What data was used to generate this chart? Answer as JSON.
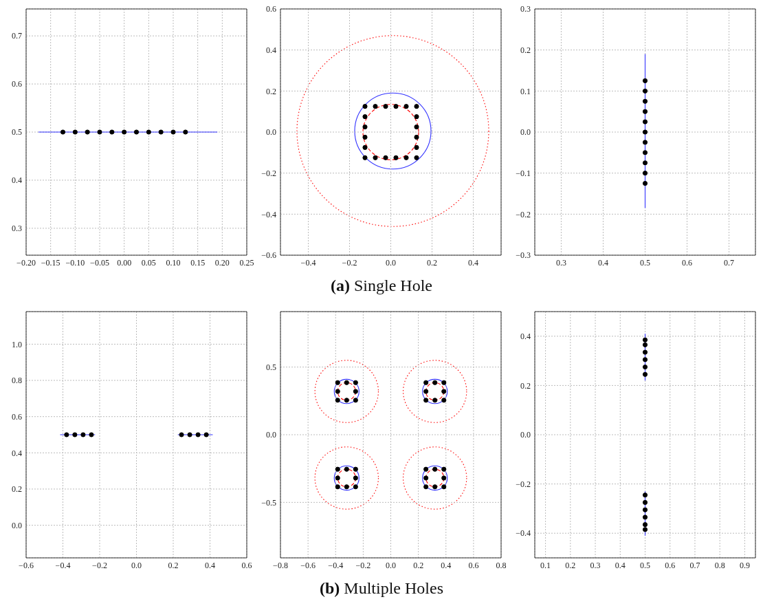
{
  "chart_data": [
    {
      "type": "scatter",
      "grid": true,
      "xlim": [
        -0.2,
        0.25
      ],
      "ylim": [
        0.244,
        0.756
      ],
      "xticks": [
        {
          "value": -0.2,
          "label": "−0.20"
        },
        {
          "value": -0.15,
          "label": "−0.15"
        },
        {
          "value": -0.1,
          "label": "−0.10"
        },
        {
          "value": -0.05,
          "label": "−0.05"
        },
        {
          "value": 0,
          "label": "0.00"
        },
        0.05,
        {
          "value": 0.1,
          "label": "0.10"
        },
        0.15,
        {
          "value": 0.2,
          "label": "0.20"
        },
        0.25
      ],
      "yticks": [
        0.3,
        0.4,
        0.5,
        0.6,
        0.7
      ],
      "series": [
        {
          "type": "line",
          "line_style": "solid",
          "color": "#3333ff",
          "x": [
            -0.175,
            0.19
          ],
          "values": [
            0.5,
            0.5
          ]
        },
        {
          "marker": "circle",
          "color": "#000000",
          "x": [
            -0.125,
            -0.1,
            -0.075,
            -0.05,
            -0.025,
            0,
            0.025,
            0.05,
            0.075,
            0.1,
            0.125
          ],
          "values": [
            0.5,
            0.5,
            0.5,
            0.5,
            0.5,
            0.5,
            0.5,
            0.5,
            0.5,
            0.5,
            0.5
          ]
        }
      ]
    },
    {
      "type": "scatter",
      "grid": true,
      "xlim": [
        -0.535,
        0.535
      ],
      "ylim": [
        -0.6,
        0.6
      ],
      "xticks": [
        {
          "value": -0.4,
          "label": "−0.4"
        },
        {
          "value": -0.2,
          "label": "−0.2"
        },
        {
          "value": 0,
          "label": "0.0"
        },
        0.2,
        0.4
      ],
      "yticks": [
        {
          "value": -0.6,
          "label": "−0.6"
        },
        {
          "value": -0.4,
          "label": "−0.4"
        },
        {
          "value": -0.2,
          "label": "−0.2"
        },
        {
          "value": 0,
          "label": "0.0"
        },
        0.2,
        0.4,
        0.6
      ],
      "annotations": [
        "(a) Single Hole"
      ],
      "series": [
        {
          "marker": "circle",
          "color": "#000000",
          "x": [
            -0.125,
            -0.075,
            -0.025,
            0.025,
            0.075,
            0.125,
            0.125,
            0.125,
            0.125,
            0.125,
            0.125,
            0.075,
            0.025,
            -0.025,
            -0.075,
            -0.125,
            -0.125,
            -0.125,
            -0.125,
            -0.125
          ],
          "values": [
            0.125,
            0.125,
            0.125,
            0.125,
            0.125,
            0.125,
            0.075,
            0.025,
            -0.025,
            -0.075,
            -0.125,
            -0.125,
            -0.125,
            -0.125,
            -0.125,
            -0.125,
            -0.075,
            -0.025,
            0.025,
            0.075
          ]
        }
      ]
    },
    {
      "type": "scatter",
      "grid": true,
      "xlim": [
        0.237,
        0.763
      ],
      "ylim": [
        -0.3,
        0.3
      ],
      "xticks": [
        0.3,
        0.4,
        0.5,
        0.6,
        0.7
      ],
      "yticks": [
        {
          "value": -0.3,
          "label": "−0.3"
        },
        {
          "value": -0.2,
          "label": "−0.2"
        },
        {
          "value": -0.1,
          "label": "−0.1"
        },
        {
          "value": 0,
          "label": "0.0"
        },
        0.1,
        0.2,
        0.3
      ],
      "series": [
        {
          "type": "line",
          "line_style": "solid",
          "color": "#3333ff",
          "x": [
            0.5,
            0.5
          ],
          "values": [
            -0.185,
            0.19
          ]
        },
        {
          "marker": "circle",
          "color": "#000000",
          "x": [
            0.5,
            0.5,
            0.5,
            0.5,
            0.5,
            0.5,
            0.5,
            0.5,
            0.5,
            0.5,
            0.5
          ],
          "values": [
            -0.125,
            -0.1,
            -0.075,
            -0.05,
            -0.025,
            0,
            0.025,
            0.05,
            0.075,
            0.1,
            0.125
          ]
        }
      ]
    },
    {
      "type": "scatter",
      "grid": true,
      "xlim": [
        -0.6,
        0.6
      ],
      "ylim": [
        -0.18,
        1.18
      ],
      "xticks": [
        {
          "value": -0.6,
          "label": "−0.6"
        },
        {
          "value": -0.4,
          "label": "−0.4"
        },
        {
          "value": -0.2,
          "label": "−0.2"
        },
        {
          "value": 0,
          "label": "0.0"
        },
        0.2,
        0.4,
        0.6
      ],
      "yticks": [
        {
          "value": 0,
          "label": "0.0"
        },
        0.2,
        0.4,
        0.6,
        0.8,
        {
          "value": 1,
          "label": "1.0"
        }
      ],
      "series": [
        {
          "type": "line",
          "line_style": "solid",
          "color": "#3333ff",
          "x": [
            -0.415,
            -0.225
          ],
          "values": [
            0.5,
            0.5
          ]
        },
        {
          "type": "line",
          "line_style": "solid",
          "color": "#3333ff",
          "x": [
            0.225,
            0.415
          ],
          "values": [
            0.5,
            0.5
          ]
        },
        {
          "marker": "circle",
          "color": "#000000",
          "x": [
            -0.38,
            -0.335,
            -0.29,
            -0.245,
            0.245,
            0.29,
            0.335,
            0.38
          ],
          "values": [
            0.5,
            0.5,
            0.5,
            0.5,
            0.5,
            0.5,
            0.5,
            0.5
          ]
        }
      ]
    },
    {
      "type": "scatter",
      "grid": true,
      "xlim": [
        -0.8,
        0.8
      ],
      "ylim": [
        -0.91,
        0.91
      ],
      "xticks": [
        {
          "value": -0.8,
          "label": "−0.8"
        },
        {
          "value": -0.6,
          "label": "−0.6"
        },
        {
          "value": -0.4,
          "label": "−0.4"
        },
        {
          "value": -0.2,
          "label": "−0.2"
        },
        {
          "value": 0,
          "label": "0.0"
        },
        0.2,
        0.4,
        0.6,
        0.8
      ],
      "yticks": [
        {
          "value": -0.5,
          "label": "−0.5"
        },
        {
          "value": 0,
          "label": "0.0"
        },
        0.5
      ],
      "annotations": [
        "(b) Multiple Holes"
      ],
      "series": [
        {
          "marker": "circle",
          "color": "#000000",
          "x": [
            -0.385,
            -0.32,
            -0.255,
            -0.255,
            -0.255,
            -0.32,
            -0.385,
            -0.385,
            0.255,
            0.32,
            0.385,
            0.385,
            0.385,
            0.32,
            0.255,
            0.255,
            -0.385,
            -0.32,
            -0.255,
            -0.255,
            -0.255,
            -0.32,
            -0.385,
            -0.385,
            0.255,
            0.32,
            0.385,
            0.385,
            0.385,
            0.32,
            0.255,
            0.255
          ],
          "values": [
            0.255,
            0.255,
            0.255,
            0.32,
            0.385,
            0.385,
            0.385,
            0.32,
            0.255,
            0.255,
            0.255,
            0.32,
            0.385,
            0.385,
            0.385,
            0.32,
            -0.385,
            -0.385,
            -0.385,
            -0.32,
            -0.255,
            -0.255,
            -0.255,
            -0.32,
            -0.385,
            -0.385,
            -0.385,
            -0.32,
            -0.255,
            -0.255,
            -0.255,
            -0.32
          ]
        }
      ]
    },
    {
      "type": "scatter",
      "grid": true,
      "xlim": [
        0.057,
        0.943
      ],
      "ylim": [
        -0.5,
        0.5
      ],
      "xticks": [
        0.1,
        0.2,
        0.3,
        0.4,
        0.5,
        0.6,
        0.7,
        0.8,
        0.9
      ],
      "yticks": [
        {
          "value": -0.4,
          "label": "−0.4"
        },
        {
          "value": -0.2,
          "label": "−0.2"
        },
        {
          "value": 0,
          "label": "0.0"
        },
        0.2,
        0.4
      ],
      "series": [
        {
          "type": "line",
          "line_style": "solid",
          "color": "#3333ff",
          "x": [
            0.5,
            0.5
          ],
          "values": [
            0.22,
            0.41
          ]
        },
        {
          "type": "line",
          "line_style": "solid",
          "color": "#3333ff",
          "x": [
            0.5,
            0.5
          ],
          "values": [
            -0.23,
            -0.41
          ]
        },
        {
          "marker": "circle",
          "color": "#000000",
          "x": [
            0.5,
            0.5,
            0.5,
            0.5,
            0.5,
            0.5,
            0.5,
            0.5,
            0.5,
            0.5,
            0.5,
            0.5
          ],
          "values": [
            0.245,
            0.275,
            0.305,
            0.335,
            0.365,
            0.385,
            -0.245,
            -0.275,
            -0.305,
            -0.335,
            -0.365,
            -0.385
          ]
        }
      ]
    }
  ]
}
